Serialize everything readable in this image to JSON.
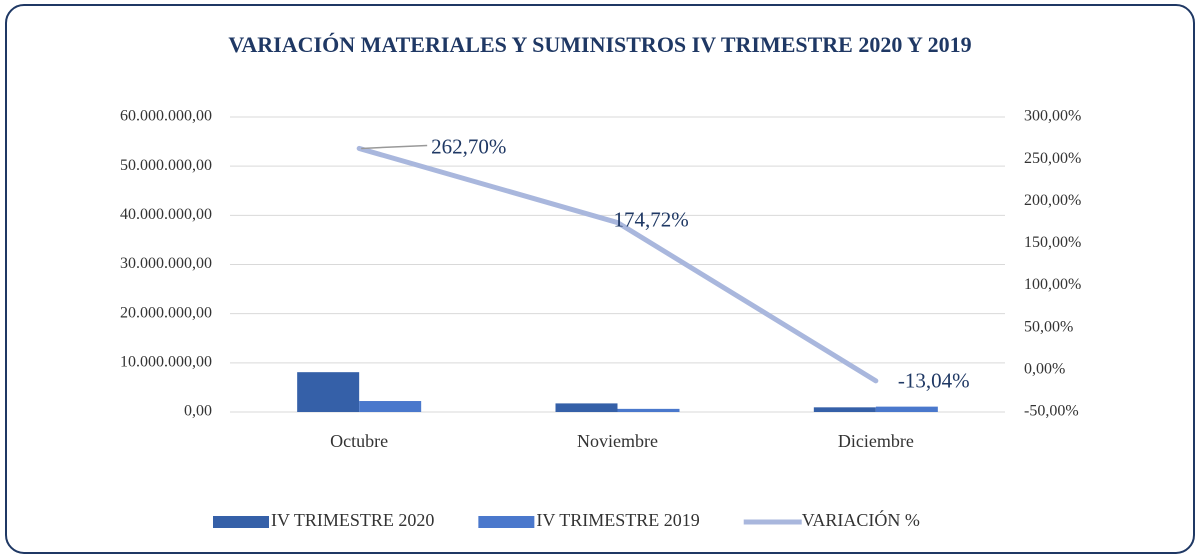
{
  "chart_data": {
    "type": "bar",
    "title": "VARIACIÓN MATERIALES Y SUMINISTROS IV TRIMESTRE 2020 Y 2019",
    "categories": [
      "Octubre",
      "Noviembre",
      "Diciembre"
    ],
    "series": [
      {
        "name": "IV TRIMESTRE 2020",
        "type": "bar",
        "color": "#3560a8",
        "values": [
          8100000,
          1750000,
          950000
        ]
      },
      {
        "name": "IV TRIMESTRE 2019",
        "type": "bar",
        "color": "#4a78cc",
        "values": [
          2233000,
          637000,
          1092000
        ]
      },
      {
        "name": "VARIACIÓN %",
        "type": "line",
        "axis": "y2",
        "color": "#a9b7dd",
        "values": [
          262.7,
          174.72,
          -13.04
        ],
        "value_labels": [
          "262,70%",
          "174,72%",
          "-13,04%"
        ]
      }
    ],
    "ylim": [
      0,
      60000000
    ],
    "yticks": [
      {
        "value": 0,
        "label": "0,00"
      },
      {
        "value": 10000000,
        "label": "10.000.000,00"
      },
      {
        "value": 20000000,
        "label": "20.000.000,00"
      },
      {
        "value": 30000000,
        "label": "30.000.000,00"
      },
      {
        "value": 40000000,
        "label": "40.000.000,00"
      },
      {
        "value": 50000000,
        "label": "50.000.000,00"
      },
      {
        "value": 60000000,
        "label": "60.000.000,00"
      }
    ],
    "y2lim": [
      -50,
      300
    ],
    "y2ticks": [
      {
        "value": -50,
        "label": "-50,00%"
      },
      {
        "value": 0,
        "label": "0,00%"
      },
      {
        "value": 50,
        "label": "50,00%"
      },
      {
        "value": 100,
        "label": "100,00%"
      },
      {
        "value": 150,
        "label": "150,00%"
      },
      {
        "value": 200,
        "label": "200,00%"
      },
      {
        "value": 250,
        "label": "250,00%"
      },
      {
        "value": 300,
        "label": "300,00%"
      }
    ],
    "grid": true,
    "legend": "bottom"
  }
}
